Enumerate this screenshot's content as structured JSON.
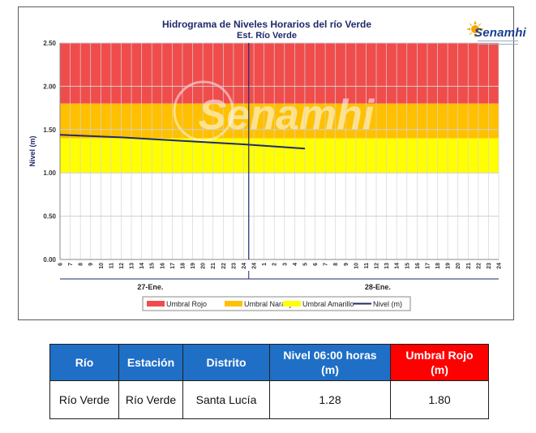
{
  "chart_data": {
    "type": "line",
    "title": "Hidrograma de Niveles Horarios del río Verde",
    "subtitle": "Est. Río Verde",
    "ylabel": "Nivel (m)",
    "ylim": [
      0,
      2.5
    ],
    "yticks": [
      "0.00",
      "0.50",
      "1.00",
      "1.50",
      "2.00",
      "2.50"
    ],
    "xticks": [
      "6",
      "7",
      "8",
      "9",
      "10",
      "11",
      "12",
      "13",
      "14",
      "15",
      "16",
      "17",
      "18",
      "19",
      "20",
      "21",
      "22",
      "23",
      "24",
      "24",
      "1",
      "2",
      "3",
      "4",
      "5",
      "6",
      "7",
      "8",
      "9",
      "10",
      "11",
      "12",
      "13",
      "14",
      "15",
      "16",
      "17",
      "18",
      "19",
      "20",
      "21",
      "22",
      "23",
      "24"
    ],
    "day_labels": [
      "27-Ene.",
      "28-Ene."
    ],
    "grid": true,
    "legend_position": "bottom",
    "threshold_bands": [
      {
        "name": "Umbral Rojo",
        "from": 1.8,
        "to": 2.5,
        "color": "#f04c4c"
      },
      {
        "name": "Umbral Naranja",
        "from": 1.4,
        "to": 1.8,
        "color": "#ffc000"
      },
      {
        "name": "Umbral Amarillo",
        "from": 1.0,
        "to": 1.4,
        "color": "#ffff00"
      }
    ],
    "series": [
      {
        "name": "Nivel (m)",
        "color": "#1f2a6b",
        "x_hour_index": [
          0,
          6,
          12,
          18,
          24
        ],
        "values": [
          1.44,
          1.41,
          1.37,
          1.33,
          1.28
        ]
      }
    ]
  },
  "watermark": "Senamhi",
  "logo_text": "Senamhi",
  "table": {
    "headers": [
      {
        "label": "Río",
        "color": "#1f6fc6"
      },
      {
        "label": "Estación",
        "color": "#1f6fc6"
      },
      {
        "label": "Distrito",
        "color": "#1f6fc6"
      },
      {
        "label": "Nivel 06:00 horas (m)",
        "color": "#1f6fc6"
      },
      {
        "label": "Umbral Rojo (m)",
        "color": "#ff0000"
      }
    ],
    "rows": [
      [
        "Río Verde",
        "Río Verde",
        "Santa Lucía",
        "1.28",
        "1.80"
      ]
    ]
  }
}
